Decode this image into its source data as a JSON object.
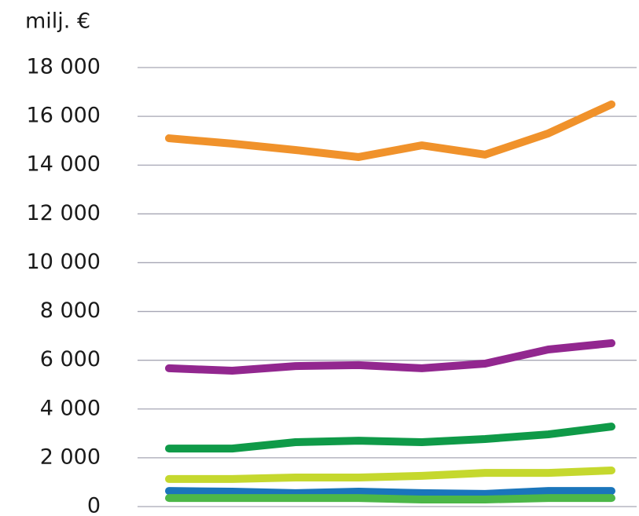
{
  "chart_data": {
    "type": "line",
    "y_label": "milj. €",
    "categories": [
      null,
      null,
      null,
      null,
      null,
      null,
      null,
      null
    ],
    "series": [
      {
        "color": "#f0922b",
        "values": [
          15100,
          14880,
          14620,
          14330,
          14810,
          14430,
          15300,
          16490
        ]
      },
      {
        "color": "#92278f",
        "values": [
          5670,
          5570,
          5760,
          5800,
          5670,
          5860,
          6440,
          6700
        ]
      },
      {
        "color": "#0f9a48",
        "values": [
          2380,
          2380,
          2640,
          2700,
          2640,
          2770,
          2960,
          3280
        ]
      },
      {
        "color": "#c5d82e",
        "values": [
          1130,
          1130,
          1190,
          1190,
          1260,
          1380,
          1380,
          1480
        ]
      },
      {
        "color": "#1a75bb",
        "values": [
          640,
          610,
          550,
          610,
          550,
          520,
          640,
          640
        ]
      },
      {
        "color": "#4cb748",
        "values": [
          350,
          350,
          350,
          350,
          290,
          290,
          350,
          350
        ]
      }
    ],
    "ylim": [
      0,
      18000
    ],
    "yticks": [
      0,
      {
        "value": 2000,
        "label": "2 000"
      },
      {
        "value": 4000,
        "label": "4 000"
      },
      {
        "value": 6000,
        "label": "6 000"
      },
      {
        "value": 8000,
        "label": "8 000"
      },
      {
        "value": 10000,
        "label": "10 000"
      },
      {
        "value": 12000,
        "label": "12 000"
      },
      {
        "value": 14000,
        "label": "14 000"
      },
      {
        "value": 16000,
        "label": "16 000"
      },
      {
        "value": 18000,
        "label": "18 000"
      }
    ],
    "grid": true
  }
}
